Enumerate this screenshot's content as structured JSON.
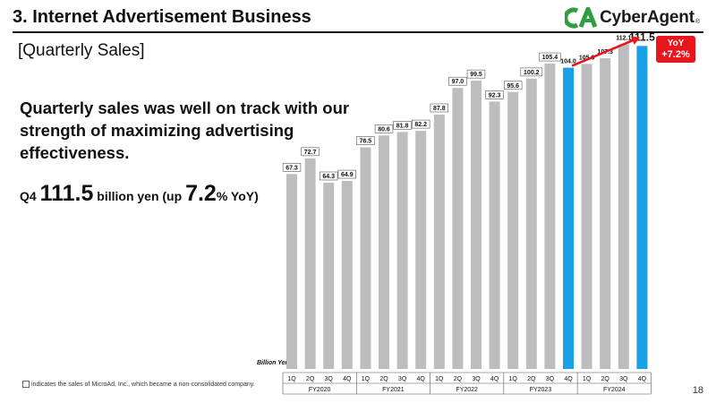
{
  "header": {
    "section_title": "3.  Internet Advertisement Business",
    "logo_text": "CyberAgent",
    "logo_reg": "®"
  },
  "subtitle": "[Quarterly Sales]",
  "headline": "Quarterly sales was well on track with our strength of maximizing advertising effectiveness.",
  "kpi": {
    "prefix": "Q4 ",
    "value": "111.5",
    "mid": " billion yen (up ",
    "pct": "7.2",
    "suffix": "% YoY)"
  },
  "yoy_badge": {
    "label": "YoY",
    "value": "+7.2%"
  },
  "colors": {
    "grey_bar": "#bdbdbd",
    "highlight_bar": "#1aa0e6",
    "arrow": "#e8161b",
    "logo_green": "#2e9e3f"
  },
  "note": "indicates the sales of MicroAd, Inc., which became a non-consolidated company.",
  "page_number": "18",
  "chart_data": {
    "type": "bar",
    "ylabel": "Billion Yen",
    "categories": [
      "1Q",
      "2Q",
      "3Q",
      "4Q",
      "1Q",
      "2Q",
      "3Q",
      "4Q",
      "1Q",
      "2Q",
      "3Q",
      "4Q",
      "1Q",
      "2Q",
      "3Q",
      "4Q",
      "1Q",
      "2Q",
      "3Q",
      "4Q"
    ],
    "groups": [
      "FY2020",
      "FY2021",
      "FY2022",
      "FY2023",
      "FY2024"
    ],
    "values": [
      67.3,
      72.7,
      64.3,
      64.9,
      76.5,
      80.6,
      81.8,
      82.2,
      87.8,
      97.0,
      99.5,
      92.3,
      95.6,
      100.2,
      105.4,
      104.0,
      105.3,
      107.3,
      112.1,
      111.5
    ],
    "labels": [
      "67.3",
      "72.7",
      "64.3",
      "64.9",
      "76.5",
      "80.6",
      "81.8",
      "82.2",
      "87.8",
      "97.0",
      "99.5",
      "92.3",
      "95.6",
      "100.2",
      "105.4",
      "104.0",
      "105.3",
      "107.3",
      "112.1",
      "111.5"
    ],
    "highlight": [
      false,
      false,
      false,
      false,
      false,
      false,
      false,
      false,
      false,
      false,
      false,
      false,
      false,
      false,
      false,
      true,
      false,
      false,
      false,
      true
    ],
    "boxed_labels": [
      true,
      true,
      true,
      true,
      true,
      true,
      true,
      true,
      true,
      true,
      true,
      true,
      true,
      true,
      true,
      false,
      false,
      false,
      false,
      false
    ],
    "ylim": [
      0,
      115
    ]
  }
}
